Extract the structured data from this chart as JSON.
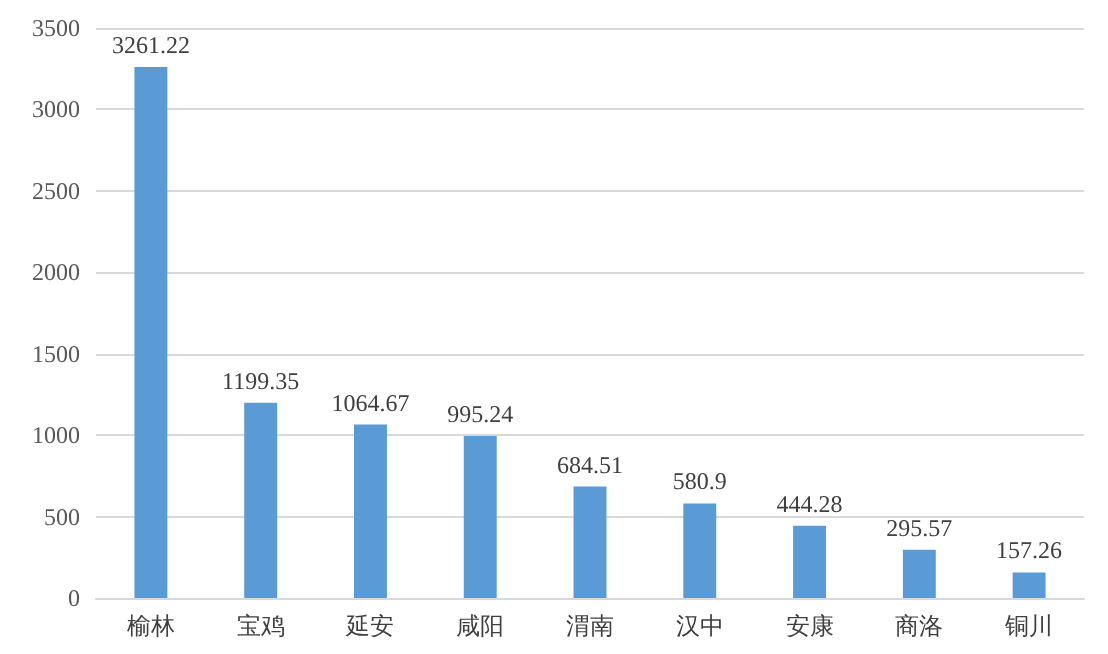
{
  "chart_data": {
    "type": "bar",
    "categories": [
      "榆林",
      "宝鸡",
      "延安",
      "咸阳",
      "渭南",
      "汉中",
      "安康",
      "商洛",
      "铜川"
    ],
    "values": [
      3261.22,
      1199.35,
      1064.67,
      995.24,
      684.51,
      580.9,
      444.28,
      295.57,
      157.26
    ],
    "color": "#5b9bd5",
    "ylim": [
      0,
      3500
    ],
    "yticks": [
      0,
      500,
      1000,
      1500,
      2000,
      2500,
      3000,
      3500
    ],
    "grid": "y",
    "data_labels": true
  }
}
